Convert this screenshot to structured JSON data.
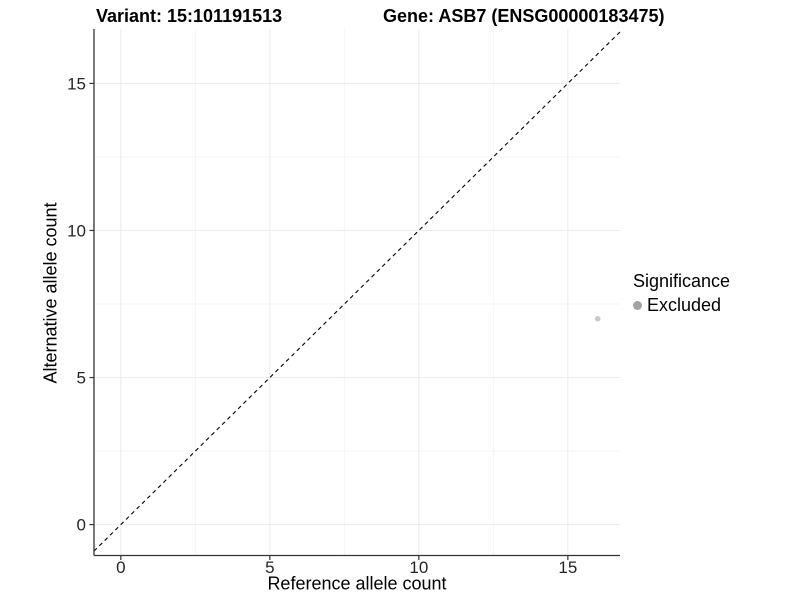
{
  "figure": {
    "variant_title": "Variant: 15:101191513",
    "gene_title": "Gene: ASB7 (ENSG00000183475)"
  },
  "legend": {
    "title": "Significance",
    "items": [
      {
        "label": "Excluded",
        "swatch_color": "#a3a3a3"
      }
    ]
  },
  "chart_data": {
    "type": "scatter",
    "title": "Variant: 15:101191513 | Gene: ASB7 (ENSG00000183475)",
    "xlabel": "Reference allele count",
    "ylabel": "Alternative allele count",
    "xlim": [
      -0.9,
      16.75
    ],
    "ylim": [
      -1.05,
      16.85
    ],
    "x_ticks": [
      0,
      5,
      10,
      15
    ],
    "y_ticks": [
      0,
      5,
      10,
      15
    ],
    "x_minor_ticks": [
      2.5,
      7.5,
      12.5
    ],
    "y_minor_ticks": [
      2.5,
      7.5,
      12.5
    ],
    "grid": "major+minor",
    "legend_position": "right",
    "series": [
      {
        "name": "Excluded",
        "color": "#c9c9c9",
        "marker": "circle",
        "points": [
          {
            "x": 16,
            "y": 7
          }
        ]
      }
    ],
    "reference_line": {
      "kind": "identity",
      "slope": 1,
      "intercept": 0,
      "style": "dashed",
      "color": "#000000"
    }
  },
  "colors": {
    "background": "#ffffff",
    "axis_line": "#333333",
    "grid_major": "#ebebeb",
    "grid_minor": "#f5f5f5",
    "tick_label": "#262626",
    "point": "#c9c9c9",
    "legend_swatch": "#a3a3a3"
  }
}
